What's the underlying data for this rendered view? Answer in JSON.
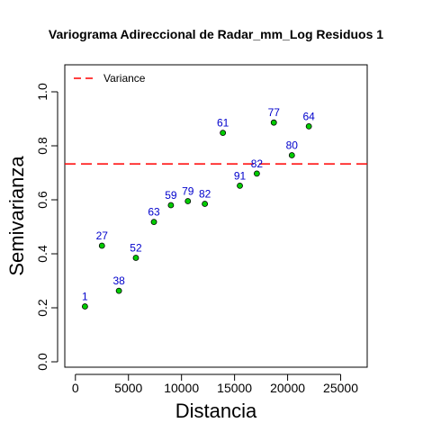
{
  "chart_data": {
    "type": "scatter",
    "title": "Variograma Adireccional de Radar_mm_Log Residuos 1",
    "xlabel": "Distancia",
    "ylabel": "Semivarianza",
    "xlim": [
      -1000,
      27500
    ],
    "ylim": [
      -0.02,
      1.1
    ],
    "x_ticks": [
      0,
      5000,
      10000,
      15000,
      20000,
      25000
    ],
    "x_tick_labels": [
      "0",
      "5000",
      "10000",
      "15000",
      "20000",
      "25000"
    ],
    "y_ticks": [
      0.0,
      0.2,
      0.4,
      0.6,
      0.8,
      1.0
    ],
    "y_tick_labels": [
      "0.0",
      "0.2",
      "0.4",
      "0.6",
      "0.8",
      "1.0"
    ],
    "grid": false,
    "legend_position": "top-left",
    "legend": [
      {
        "label": "Variance",
        "style": "dashed",
        "color": "#ff0000"
      }
    ],
    "reference_line": {
      "name": "Variance",
      "y": 0.733,
      "color": "#ff0000",
      "style": "dashed"
    },
    "marker": {
      "fill": "#00cc00",
      "stroke": "#000000"
    },
    "point_label_color": "#0000cc",
    "points": [
      {
        "x": 900,
        "y": 0.205,
        "label": "1"
      },
      {
        "x": 2500,
        "y": 0.43,
        "label": "27"
      },
      {
        "x": 4100,
        "y": 0.263,
        "label": "38"
      },
      {
        "x": 5700,
        "y": 0.385,
        "label": "52"
      },
      {
        "x": 7400,
        "y": 0.518,
        "label": "63"
      },
      {
        "x": 9000,
        "y": 0.58,
        "label": "59"
      },
      {
        "x": 10600,
        "y": 0.595,
        "label": "79"
      },
      {
        "x": 12200,
        "y": 0.585,
        "label": "82"
      },
      {
        "x": 13900,
        "y": 0.848,
        "label": "61"
      },
      {
        "x": 15500,
        "y": 0.652,
        "label": "91"
      },
      {
        "x": 17100,
        "y": 0.697,
        "label": "82"
      },
      {
        "x": 18700,
        "y": 0.886,
        "label": "77"
      },
      {
        "x": 20400,
        "y": 0.765,
        "label": "80"
      },
      {
        "x": 22000,
        "y": 0.872,
        "label": "64"
      }
    ]
  }
}
